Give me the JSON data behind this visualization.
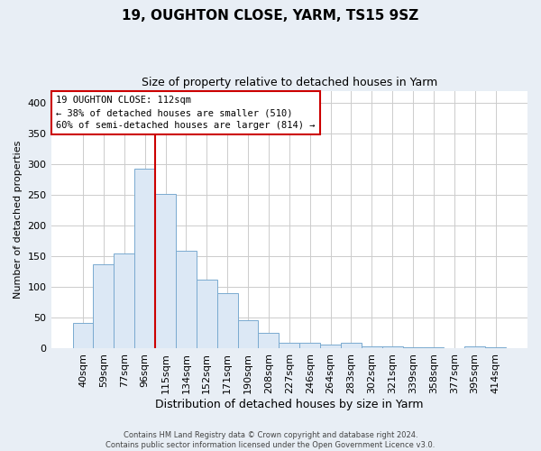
{
  "title1": "19, OUGHTON CLOSE, YARM, TS15 9SZ",
  "title2": "Size of property relative to detached houses in Yarm",
  "xlabel": "Distribution of detached houses by size in Yarm",
  "ylabel": "Number of detached properties",
  "bin_labels": [
    "40sqm",
    "59sqm",
    "77sqm",
    "96sqm",
    "115sqm",
    "134sqm",
    "152sqm",
    "171sqm",
    "190sqm",
    "208sqm",
    "227sqm",
    "246sqm",
    "264sqm",
    "283sqm",
    "302sqm",
    "321sqm",
    "339sqm",
    "358sqm",
    "377sqm",
    "395sqm",
    "414sqm"
  ],
  "bar_values": [
    42,
    138,
    155,
    293,
    252,
    160,
    112,
    90,
    46,
    25,
    10,
    10,
    6,
    9,
    4,
    3,
    2,
    2,
    1,
    3,
    2
  ],
  "bar_color": "#dce8f5",
  "bar_edge_color": "#7aaad0",
  "annotation_text": "19 OUGHTON CLOSE: 112sqm\n← 38% of detached houses are smaller (510)\n60% of semi-detached houses are larger (814) →",
  "annotation_box_color": "#ffffff",
  "annotation_box_edge_color": "#cc0000",
  "red_line_color": "#cc0000",
  "ylim": [
    0,
    420
  ],
  "yticks": [
    0,
    50,
    100,
    150,
    200,
    250,
    300,
    350,
    400
  ],
  "footer1": "Contains HM Land Registry data © Crown copyright and database right 2024.",
  "footer2": "Contains public sector information licensed under the Open Government Licence v3.0.",
  "plot_bg_color": "#ffffff",
  "fig_bg_color": "#e8eef5",
  "grid_color": "#cccccc"
}
